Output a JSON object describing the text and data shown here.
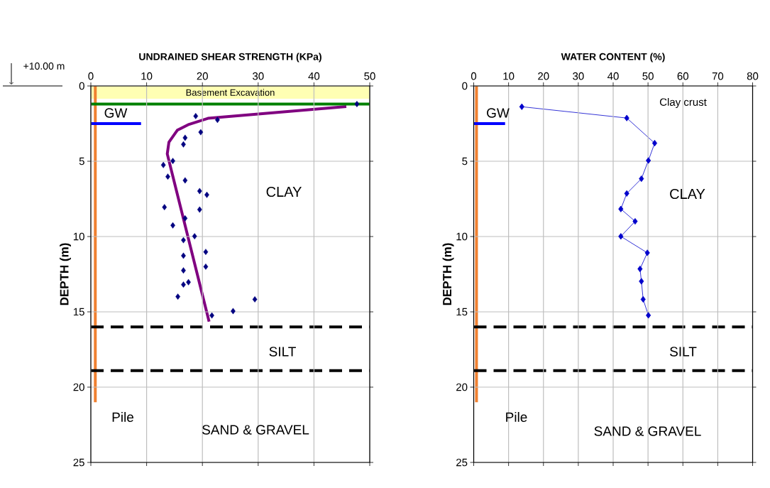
{
  "chart_data": [
    {
      "type": "scatter",
      "title": "UNDRAINED SHEAR STRENGTH  (KPa)",
      "ylabel": "DEPTH  (m)",
      "xlim": [
        0,
        50
      ],
      "xticks": [
        0,
        10,
        20,
        30,
        40,
        50
      ],
      "ylim": [
        25,
        0
      ],
      "yticks": [
        0,
        5,
        10,
        15,
        20,
        25
      ],
      "grid": true,
      "series": [
        {
          "color": "#000080",
          "marker": "diamond",
          "x": [
            47.7,
            18.8,
            22.7,
            19.7,
            16.9,
            16.6,
            14.7,
            13.0,
            13.8,
            16.9,
            19.5,
            20.8,
            13.2,
            19.5,
            16.9,
            14.7,
            18.6,
            16.6,
            20.6,
            16.6,
            20.6,
            16.6,
            17.5,
            16.6,
            15.6,
            29.4,
            25.5,
            21.7
          ],
          "values": [
            1.2,
            2.0,
            2.25,
            3.07,
            3.44,
            3.88,
            4.98,
            5.25,
            6.02,
            6.27,
            6.98,
            7.23,
            8.05,
            8.21,
            8.79,
            9.26,
            9.98,
            10.24,
            11.02,
            11.27,
            12.0,
            12.25,
            13.03,
            13.19,
            13.99,
            14.17,
            14.95,
            15.24
          ]
        },
        {
          "type": "line",
          "color": "#800080",
          "x": [
            45.8,
            21.0,
            17.6,
            15.5,
            14.0,
            13.7,
            21.2
          ],
          "values": [
            1.37,
            2.15,
            2.55,
            2.94,
            3.73,
            4.51,
            15.65
          ]
        },
        {
          "type": "line",
          "color": "#f08030",
          "x": [
            0.8,
            0.8
          ],
          "values": [
            0,
            21
          ]
        },
        {
          "type": "line",
          "color": "#0000ff",
          "x": [
            0,
            9
          ],
          "values": [
            2.5,
            2.5
          ]
        }
      ],
      "ref_lines": [
        {
          "axis": "y",
          "value": 1.2,
          "color": "#008000",
          "line_style": "solid"
        },
        {
          "axis": "y",
          "value": 16,
          "color": "#000000",
          "line_style": "dashed"
        },
        {
          "axis": "y",
          "value": 18.9,
          "color": "#000000",
          "line_style": "dashed"
        }
      ],
      "bands": [
        {
          "axis": "y",
          "from": 0,
          "to": 0.85,
          "label": "Basement Excavation",
          "color": "#ffffb3"
        }
      ],
      "annotations": [
        "+10.00 m",
        "GW",
        "CLAY",
        "SILT",
        "SAND & GRAVEL",
        "Pile"
      ]
    },
    {
      "type": "line",
      "title": "WATER CONTENT  (%)",
      "ylabel": "DEPTH  (m)",
      "xlim": [
        0,
        80
      ],
      "xticks": [
        0,
        10,
        20,
        30,
        40,
        50,
        60,
        70,
        80
      ],
      "ylim": [
        25,
        0
      ],
      "yticks": [
        0,
        5,
        10,
        15,
        20,
        25
      ],
      "grid": true,
      "series": [
        {
          "color": "#0000cc",
          "marker": "diamond",
          "x": [
            13.8,
            43.9,
            51.9,
            50.1,
            48.1,
            43.9,
            42.2,
            46.3,
            42.2,
            49.8,
            47.7,
            48.1,
            48.6,
            50.1
          ],
          "values": [
            1.38,
            2.13,
            3.8,
            4.95,
            6.16,
            7.14,
            8.17,
            8.99,
            9.99,
            11.08,
            12.15,
            12.97,
            14.17,
            15.23
          ]
        },
        {
          "color": "#f08030",
          "x": [
            0.8,
            0.8
          ],
          "values": [
            0,
            21
          ]
        },
        {
          "color": "#0000ff",
          "x": [
            0,
            9
          ],
          "values": [
            2.5,
            2.5
          ]
        }
      ],
      "ref_lines": [
        {
          "axis": "y",
          "value": 16,
          "color": "#000000",
          "line_style": "dashed"
        },
        {
          "axis": "y",
          "value": 18.9,
          "color": "#000000",
          "line_style": "dashed"
        }
      ],
      "annotations": [
        "Clay crust",
        "GW",
        "CLAY",
        "SILT",
        "SAND & GRAVEL",
        "Pile"
      ]
    }
  ]
}
